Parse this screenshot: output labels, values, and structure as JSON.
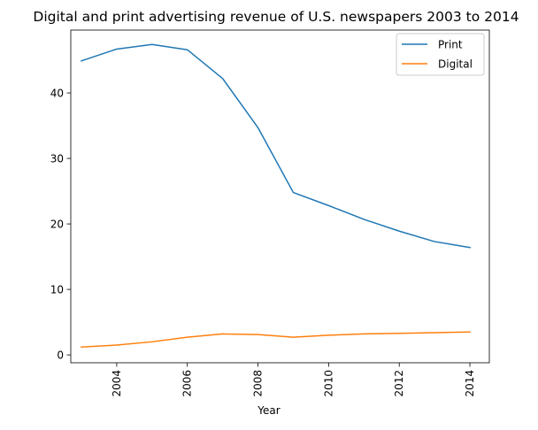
{
  "chart_data": {
    "type": "line",
    "title": "Digital and print advertising revenue of U.S. newspapers 2003 to 2014",
    "xlabel": "Year",
    "ylabel": "",
    "x": [
      2003,
      2004,
      2005,
      2006,
      2007,
      2008,
      2009,
      2010,
      2011,
      2012,
      2013,
      2014
    ],
    "xlim": [
      2002.7,
      2014.55
    ],
    "ylim": [
      -1.2,
      49.6
    ],
    "xticks": [
      2004,
      2006,
      2008,
      2010,
      2012,
      2014
    ],
    "yticks": [
      0,
      10,
      20,
      30,
      40
    ],
    "grid": false,
    "legend_position": "top-right",
    "series": [
      {
        "name": "Print",
        "color": "#1f77b4",
        "values": [
          44.9,
          46.7,
          47.4,
          46.6,
          42.2,
          34.7,
          24.8,
          22.8,
          20.7,
          18.9,
          17.3,
          16.4
        ]
      },
      {
        "name": "Digital",
        "color": "#ff7f0e",
        "values": [
          1.2,
          1.5,
          2.0,
          2.7,
          3.2,
          3.1,
          2.7,
          3.0,
          3.2,
          3.3,
          3.4,
          3.5
        ]
      }
    ]
  }
}
